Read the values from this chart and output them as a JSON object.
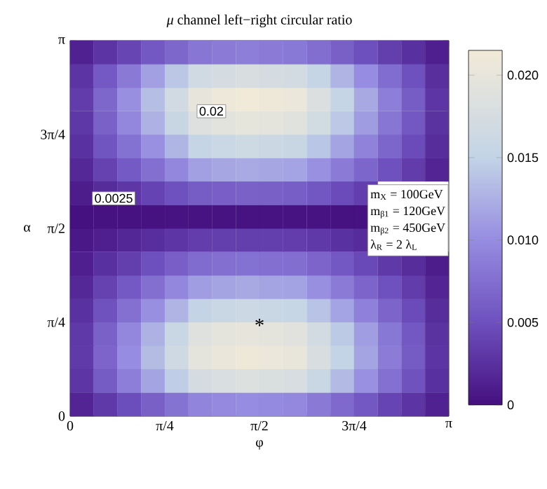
{
  "chart_data": {
    "type": "heatmap",
    "title": "*μ* channel left−right circular ratio",
    "xlabel": "φ",
    "ylabel": "α",
    "x": [
      0.098,
      0.295,
      0.491,
      0.687,
      0.884,
      1.08,
      1.276,
      1.473,
      1.669,
      1.865,
      2.062,
      2.258,
      2.454,
      2.651,
      2.847,
      3.043
    ],
    "y": [
      3.043,
      2.847,
      2.651,
      2.454,
      2.258,
      2.062,
      1.865,
      1.669,
      1.473,
      1.276,
      1.08,
      0.884,
      0.687,
      0.491,
      0.295,
      0.098
    ],
    "cells": [
      [
        0.0014,
        0.0028,
        0.0042,
        0.0056,
        0.0069,
        0.0082,
        0.0086,
        0.0088,
        0.0086,
        0.0084,
        0.0075,
        0.0063,
        0.0049,
        0.0036,
        0.0025,
        0.0012
      ],
      [
        0.0028,
        0.0057,
        0.0085,
        0.0113,
        0.0141,
        0.0167,
        0.0174,
        0.0179,
        0.0175,
        0.0171,
        0.0153,
        0.0128,
        0.01,
        0.0074,
        0.005,
        0.0024
      ],
      [
        0.0034,
        0.0069,
        0.0102,
        0.0135,
        0.0169,
        0.02,
        0.0208,
        0.0214,
        0.021,
        0.0205,
        0.0183,
        0.0153,
        0.012,
        0.0089,
        0.006,
        0.0029
      ],
      [
        0.0031,
        0.0064,
        0.0095,
        0.0126,
        0.0157,
        0.0186,
        0.0194,
        0.0199,
        0.0195,
        0.019,
        0.017,
        0.0142,
        0.0111,
        0.0082,
        0.0056,
        0.0027
      ],
      [
        0.0026,
        0.0053,
        0.0078,
        0.0103,
        0.0129,
        0.0153,
        0.016,
        0.0164,
        0.0161,
        0.0157,
        0.014,
        0.0117,
        0.0092,
        0.0068,
        0.0046,
        0.0022
      ],
      [
        0.0019,
        0.0039,
        0.0058,
        0.0076,
        0.0095,
        0.0113,
        0.0118,
        0.0121,
        0.0118,
        0.0116,
        0.0103,
        0.0086,
        0.0068,
        0.005,
        0.0034,
        0.0016
      ],
      [
        0.001,
        0.0021,
        0.003,
        0.004,
        0.005,
        0.006,
        0.0062,
        0.0064,
        0.0063,
        0.0061,
        0.0055,
        0.0046,
        0.0036,
        null,
        null,
        null
      ],
      [
        0.0,
        0.0001,
        0.0001,
        0.0001,
        0.0002,
        0.0002,
        0.0002,
        0.0002,
        0.0002,
        0.0002,
        0.0002,
        0.0001,
        0.0001,
        null,
        null,
        null
      ],
      [
        0.0006,
        0.0012,
        0.0018,
        0.0023,
        0.0029,
        0.0035,
        0.0036,
        0.0037,
        0.0036,
        0.0035,
        0.0032,
        0.0026,
        0.0021,
        null,
        null,
        null
      ],
      [
        0.0012,
        0.0025,
        0.0037,
        0.0049,
        0.0062,
        0.0073,
        0.0076,
        0.0078,
        0.0076,
        0.0075,
        0.0067,
        0.0056,
        0.0044,
        0.0032,
        0.0022,
        0.001
      ],
      [
        0.0019,
        0.0039,
        0.0057,
        0.0076,
        0.0095,
        0.0112,
        0.0117,
        0.012,
        0.0117,
        0.0115,
        0.0102,
        0.0086,
        0.0067,
        0.005,
        0.0034,
        0.0016
      ],
      [
        0.0026,
        0.0052,
        0.0077,
        0.0102,
        0.0128,
        0.0151,
        0.0158,
        0.0162,
        0.0159,
        0.0155,
        0.0138,
        0.0116,
        0.0091,
        0.0067,
        0.0046,
        0.0022
      ],
      [
        0.0032,
        0.0064,
        0.0095,
        0.0126,
        0.0158,
        0.0187,
        0.0195,
        0.02,
        0.0196,
        0.0191,
        0.0171,
        0.0143,
        0.0112,
        0.0083,
        0.0056,
        0.0027
      ],
      [
        0.0033,
        0.0067,
        0.01,
        0.0133,
        0.0166,
        0.0196,
        0.0204,
        0.021,
        0.0206,
        0.0201,
        0.0179,
        0.015,
        0.0117,
        0.0087,
        0.0059,
        0.0028
      ],
      [
        0.0029,
        0.0059,
        0.0088,
        0.0117,
        0.0146,
        0.0173,
        0.018,
        0.0185,
        0.0181,
        0.0177,
        0.0158,
        0.0132,
        0.0103,
        0.0077,
        0.0052,
        0.0025
      ],
      [
        0.0016,
        0.0032,
        0.0048,
        0.0063,
        0.0079,
        0.0093,
        0.0097,
        0.01,
        0.0098,
        0.0096,
        0.0085,
        0.0071,
        0.0056,
        0.0041,
        0.0028,
        0.0013
      ]
    ],
    "xlim": [
      0,
      3.1416
    ],
    "ylim": [
      0,
      3.1416
    ],
    "xticks": [
      0,
      {
        "value": 0.7854,
        "label": "π/4"
      },
      {
        "value": 1.5708,
        "label": "π/2"
      },
      {
        "value": 2.3562,
        "label": "3π/4"
      },
      {
        "value": 3.1416,
        "label": "π"
      }
    ],
    "yticks": [
      0,
      {
        "value": 0.7854,
        "label": "π/4"
      },
      {
        "value": 1.5708,
        "label": "π/2"
      },
      {
        "value": 2.3562,
        "label": "3π/4"
      },
      {
        "value": 3.1416,
        "label": "π"
      }
    ],
    "clim": [
      0,
      0.0215
    ],
    "cticks": [
      0,
      0.005,
      {
        "value": 0.01,
        "label": "0.010"
      },
      0.015,
      {
        "value": 0.02,
        "label": "0.020"
      }
    ],
    "annotations": [
      "0.02",
      "0.0025",
      "*",
      "m$_{X}$ = 100GeV",
      "m$_{β1}$ = 120GeV",
      "m$_{β2}$ = 450GeV",
      "λ$_{R}$ = 2 λ$_{L}$"
    ]
  }
}
